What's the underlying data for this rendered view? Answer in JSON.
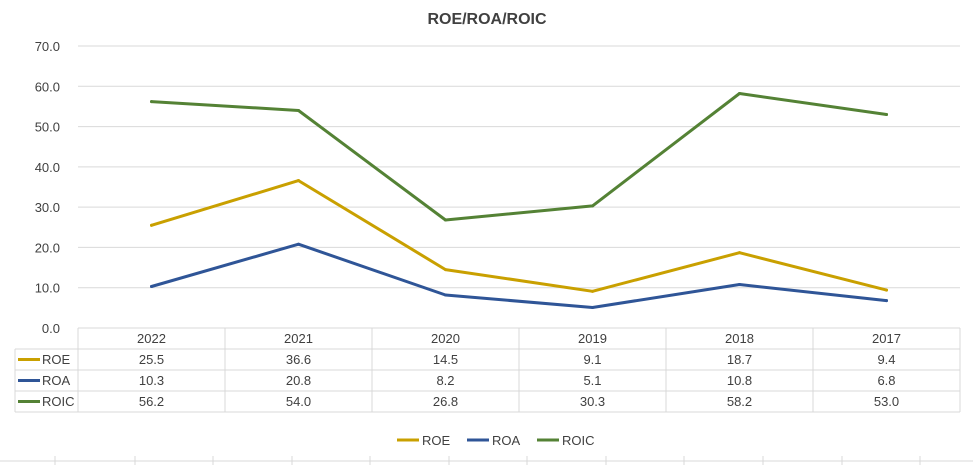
{
  "chart_data": {
    "type": "line",
    "title": "ROE/ROA/ROIC",
    "xlabel": "",
    "ylabel": "",
    "categories": [
      "2022",
      "2021",
      "2020",
      "2019",
      "2018",
      "2017"
    ],
    "ylim": [
      0,
      70
    ],
    "yticks": [
      "0.0",
      "10.0",
      "20.0",
      "30.0",
      "40.0",
      "50.0",
      "60.0",
      "70.0"
    ],
    "grid": true,
    "legend_position": "bottom",
    "data_table": true,
    "series": [
      {
        "name": "ROE",
        "color": "#C9A000",
        "values": [
          25.5,
          36.6,
          14.5,
          9.1,
          18.7,
          9.4
        ],
        "labels": [
          "25.5",
          "36.6",
          "14.5",
          "9.1",
          "18.7",
          "9.4"
        ]
      },
      {
        "name": "ROA",
        "color": "#2F5597",
        "values": [
          10.3,
          20.8,
          8.2,
          5.1,
          10.8,
          6.8
        ],
        "labels": [
          "10.3",
          "20.8",
          "8.2",
          "5.1",
          "10.8",
          "6.8"
        ]
      },
      {
        "name": "ROIC",
        "color": "#548235",
        "values": [
          56.2,
          54.0,
          26.8,
          30.3,
          58.2,
          53.0
        ],
        "labels": [
          "56.2",
          "54.0",
          "26.8",
          "30.3",
          "58.2",
          "53.0"
        ]
      }
    ]
  }
}
